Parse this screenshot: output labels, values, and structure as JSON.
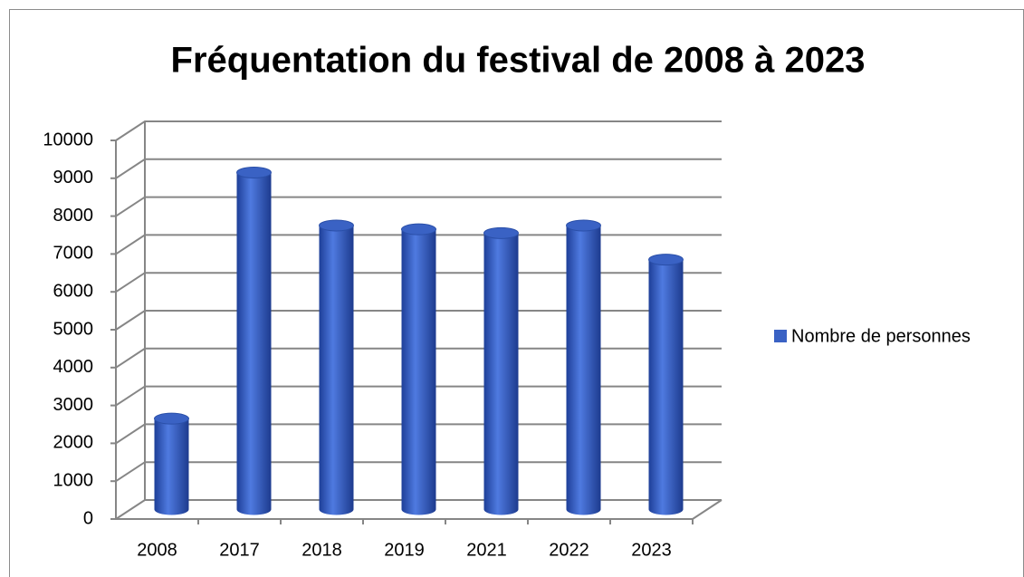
{
  "chart_data": {
    "type": "bar",
    "title": "Fréquentation du festival de 2008 à 2023",
    "categories": [
      "2008",
      "2017",
      "2018",
      "2019",
      "2021",
      "2022",
      "2023"
    ],
    "series": [
      {
        "name": "Nombre de personnes",
        "color": "#3a62c4",
        "values": [
          2400,
          8900,
          7500,
          7400,
          7300,
          7500,
          6600
        ]
      }
    ],
    "ylim": [
      0,
      10000
    ],
    "yticks": [
      0,
      1000,
      2000,
      3000,
      4000,
      5000,
      6000,
      7000,
      8000,
      9000,
      10000
    ],
    "grid": true,
    "legend": "right"
  }
}
